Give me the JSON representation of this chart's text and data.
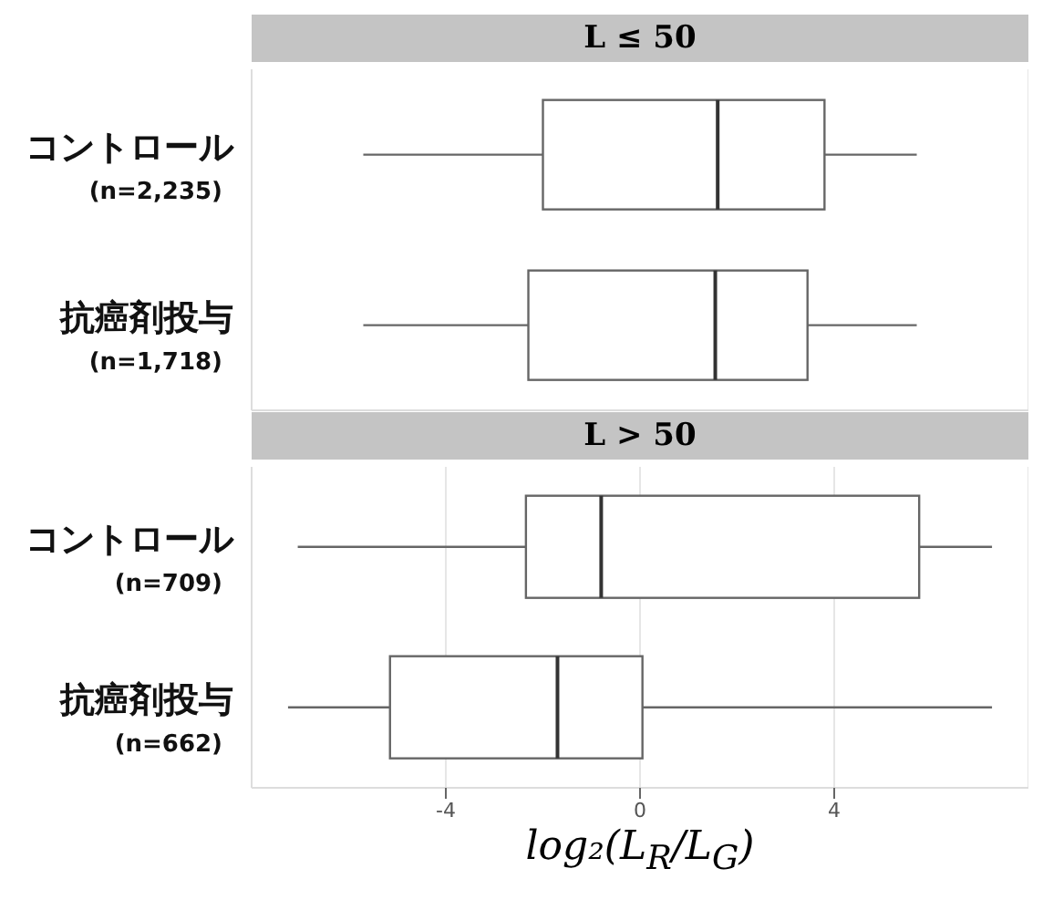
{
  "chart_data": [
    {
      "type": "box",
      "title": "L ≤ 50",
      "orientation": "horizontal",
      "categories": [
        "コントロール\n(n=2,235)",
        "抗癌剤投与\n(n=1,718)"
      ],
      "boxes": [
        {
          "low": -5.7,
          "q1": -2.0,
          "median": 1.6,
          "q3": 3.8,
          "high": 5.7
        },
        {
          "low": -5.7,
          "q1": -2.3,
          "median": 1.55,
          "q3": 3.45,
          "high": 5.7
        }
      ],
      "xlim": [
        -8,
        8
      ],
      "xticks": [
        -4,
        0,
        4
      ],
      "grid": "x",
      "tick_labels": "y"
    },
    {
      "type": "box",
      "title": "L > 50",
      "orientation": "horizontal",
      "categories": [
        "コントロール\n(n=709)",
        "抗癌剤投与\n(n=662)"
      ],
      "boxes": [
        {
          "low": -7.05,
          "q1": -2.35,
          "median": -0.8,
          "q3": 5.75,
          "high": 7.25
        },
        {
          "low": -7.25,
          "q1": -5.15,
          "median": -1.7,
          "q3": 0.05,
          "high": 7.25
        }
      ],
      "xlim": [
        -8,
        8
      ],
      "xticks": [
        -4,
        0,
        4
      ],
      "grid": "x",
      "xlabel": "log₂(L$_{R}$/L$_{G}$)"
    }
  ]
}
